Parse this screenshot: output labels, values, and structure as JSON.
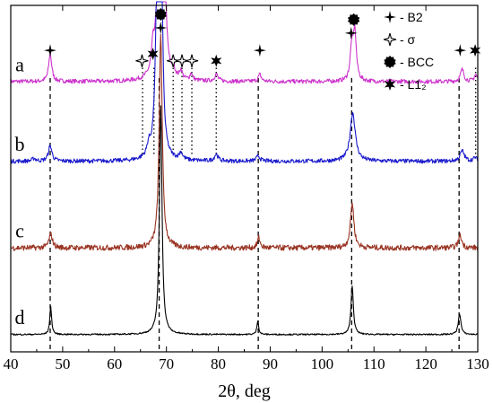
{
  "chart_data": {
    "type": "line",
    "xlabel": "2θ, deg",
    "ylabel": "",
    "xlim": [
      40,
      130
    ],
    "x_ticks": [
      "40",
      "50",
      "60",
      "70",
      "80",
      "90",
      "100",
      "110",
      "120",
      "130"
    ],
    "grid": false,
    "legend_position": "top-right",
    "legend": [
      {
        "symbol": "filled-four-point-star",
        "label": "- B2"
      },
      {
        "symbol": "open-four-point-star",
        "label": "- σ"
      },
      {
        "symbol": "filled-octagon",
        "label": "- BCC"
      },
      {
        "symbol": "filled-six-point-star",
        "label": "- L1₂"
      }
    ],
    "series": [
      {
        "label": "a",
        "color": "#cc33cc",
        "offset": 0.78,
        "noise": 0.006,
        "peaks": [
          {
            "x": 47.6,
            "h": 0.08,
            "w": 0.35
          },
          {
            "x": 67.4,
            "h": 0.07,
            "w": 0.35
          },
          {
            "x": 68.7,
            "h": 0.95,
            "w": 0.3
          },
          {
            "x": 69.3,
            "h": 0.95,
            "w": 0.3
          },
          {
            "x": 71.4,
            "h": 0.02,
            "w": 0.3
          },
          {
            "x": 72.8,
            "h": 0.025,
            "w": 0.3
          },
          {
            "x": 74.8,
            "h": 0.02,
            "w": 0.3
          },
          {
            "x": 79.6,
            "h": 0.02,
            "w": 0.4
          },
          {
            "x": 88.0,
            "h": 0.02,
            "w": 0.35
          },
          {
            "x": 105.7,
            "h": 0.09,
            "w": 0.35
          },
          {
            "x": 106.3,
            "h": 0.14,
            "w": 0.35
          },
          {
            "x": 127.0,
            "h": 0.035,
            "w": 0.4
          },
          {
            "x": 129.6,
            "h": 0.02,
            "w": 0.35
          }
        ]
      },
      {
        "label": "b",
        "color": "#1a1acc",
        "offset": 0.55,
        "noise": 0.006,
        "peaks": [
          {
            "x": 44.5,
            "h": 0.008,
            "w": 0.4
          },
          {
            "x": 47.6,
            "h": 0.045,
            "w": 0.4
          },
          {
            "x": 66.6,
            "h": 0.03,
            "w": 0.4
          },
          {
            "x": 68.3,
            "h": 0.6,
            "w": 0.4
          },
          {
            "x": 69.0,
            "h": 0.6,
            "w": 0.3
          },
          {
            "x": 72.8,
            "h": 0.02,
            "w": 0.4
          },
          {
            "x": 79.6,
            "h": 0.02,
            "w": 0.4
          },
          {
            "x": 87.7,
            "h": 0.015,
            "w": 0.4
          },
          {
            "x": 105.9,
            "h": 0.14,
            "w": 0.6
          },
          {
            "x": 127.0,
            "h": 0.03,
            "w": 0.5
          },
          {
            "x": 129.5,
            "h": 0.01,
            "w": 0.4
          }
        ]
      },
      {
        "label": "c",
        "color": "#993322",
        "offset": 0.3,
        "noise": 0.008,
        "peaks": [
          {
            "x": 47.7,
            "h": 0.04,
            "w": 0.4
          },
          {
            "x": 68.9,
            "h": 0.62,
            "w": 0.35
          },
          {
            "x": 87.8,
            "h": 0.03,
            "w": 0.3
          },
          {
            "x": 105.8,
            "h": 0.13,
            "w": 0.4
          },
          {
            "x": 126.6,
            "h": 0.035,
            "w": 0.4
          }
        ]
      },
      {
        "label": "d",
        "color": "#000000",
        "offset": 0.05,
        "noise": 0.002,
        "peaks": [
          {
            "x": 47.7,
            "h": 0.08,
            "w": 0.22
          },
          {
            "x": 68.9,
            "h": 0.66,
            "w": 0.3
          },
          {
            "x": 87.6,
            "h": 0.04,
            "w": 0.2
          },
          {
            "x": 105.8,
            "h": 0.14,
            "w": 0.28
          },
          {
            "x": 126.5,
            "h": 0.06,
            "w": 0.3
          }
        ]
      }
    ],
    "dashed_lines_x": [
      47.6,
      68.6,
      87.7,
      105.7,
      126.4
    ],
    "dotted_lines_x": [
      65.4,
      67.6,
      71.3,
      73.0,
      74.9,
      79.6,
      129.6
    ],
    "markers": [
      {
        "x": 47.6,
        "symbol": "filled-four-point-star"
      },
      {
        "x": 65.3,
        "symbol": "open-four-point-star"
      },
      {
        "x": 67.4,
        "symbol": "filled-six-point-star"
      },
      {
        "x": 68.9,
        "symbol": "filled-four-point-star"
      },
      {
        "x": 68.9,
        "symbol": "filled-octagon"
      },
      {
        "x": 71.3,
        "symbol": "open-four-point-star"
      },
      {
        "x": 73.0,
        "symbol": "open-four-point-star"
      },
      {
        "x": 74.9,
        "symbol": "open-four-point-star"
      },
      {
        "x": 79.6,
        "symbol": "filled-six-point-star"
      },
      {
        "x": 88.0,
        "symbol": "filled-four-point-star"
      },
      {
        "x": 105.6,
        "symbol": "filled-four-point-star"
      },
      {
        "x": 106.1,
        "symbol": "filled-octagon"
      },
      {
        "x": 126.6,
        "symbol": "filled-four-point-star"
      },
      {
        "x": 129.5,
        "symbol": "filled-six-point-star"
      }
    ]
  }
}
